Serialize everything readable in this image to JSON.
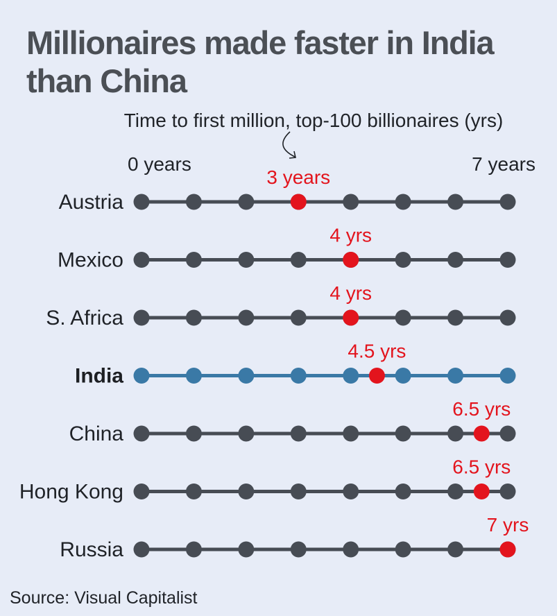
{
  "title": "Millionaires made faster in India than China",
  "source": "Source: Visual Capitalist",
  "colors": {
    "track": "#474c54",
    "highlight_track": "#3a79a6",
    "value_marker": "#e3141d",
    "background": "#e7ecf7",
    "title": "#4b4f55"
  },
  "chart_data": {
    "type": "dot-strip",
    "subtitle": "Time to first million, top-100 billionaires (yrs)",
    "x_min_label": "0 years",
    "x_max_label": "7 years",
    "xlim": [
      0,
      7
    ],
    "ticks": [
      0,
      1,
      2,
      3,
      4,
      5,
      6,
      7
    ],
    "highlight": "India",
    "rows": [
      {
        "label": "Austria",
        "value": 3,
        "value_label": "3 years"
      },
      {
        "label": "Mexico",
        "value": 4,
        "value_label": "4 yrs"
      },
      {
        "label": "S. Africa",
        "value": 4,
        "value_label": "4 yrs"
      },
      {
        "label": "India",
        "value": 4.5,
        "value_label": "4.5 yrs"
      },
      {
        "label": "China",
        "value": 6.5,
        "value_label": "6.5 yrs"
      },
      {
        "label": "Hong Kong",
        "value": 6.5,
        "value_label": "6.5 yrs"
      },
      {
        "label": "Russia",
        "value": 7,
        "value_label": "7 yrs"
      }
    ]
  }
}
